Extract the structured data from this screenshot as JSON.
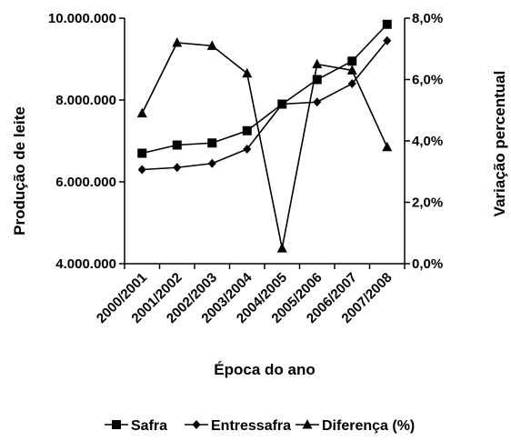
{
  "chart_data": {
    "type": "line",
    "categories": [
      "2000/2001",
      "2001/2002",
      "2002/2003",
      "2003/2004",
      "2004/2005",
      "2005/2006",
      "2006/2007",
      "2007/2008"
    ],
    "xlabel": "Época do ano",
    "ylabel": "Produção de leite",
    "y2label": "Variação percentual",
    "ylim": [
      4000000,
      10000000
    ],
    "yticks": [
      "4.000.000",
      "6.000.000",
      "8.000.000",
      "10.000.000"
    ],
    "y2lim": [
      0,
      8
    ],
    "y2ticks": [
      "0,0%",
      "2,0%",
      "4,0%",
      "6,0%",
      "8,0%"
    ],
    "series": [
      {
        "name": "Safra",
        "axis": "left",
        "marker": "square",
        "values": [
          6700000,
          6900000,
          6950000,
          7250000,
          7900000,
          8500000,
          8950000,
          9850000
        ]
      },
      {
        "name": "Entressafra",
        "axis": "left",
        "marker": "diamond",
        "values": [
          6300000,
          6350000,
          6450000,
          6800000,
          7900000,
          7950000,
          8400000,
          9450000
        ]
      },
      {
        "name": "Diferença (%)",
        "axis": "right",
        "marker": "triangle",
        "values": [
          4.9,
          7.2,
          7.1,
          6.2,
          0.5,
          6.5,
          6.3,
          3.8
        ]
      }
    ],
    "legend_position": "bottom",
    "grid": false,
    "line_color": "#000000"
  }
}
